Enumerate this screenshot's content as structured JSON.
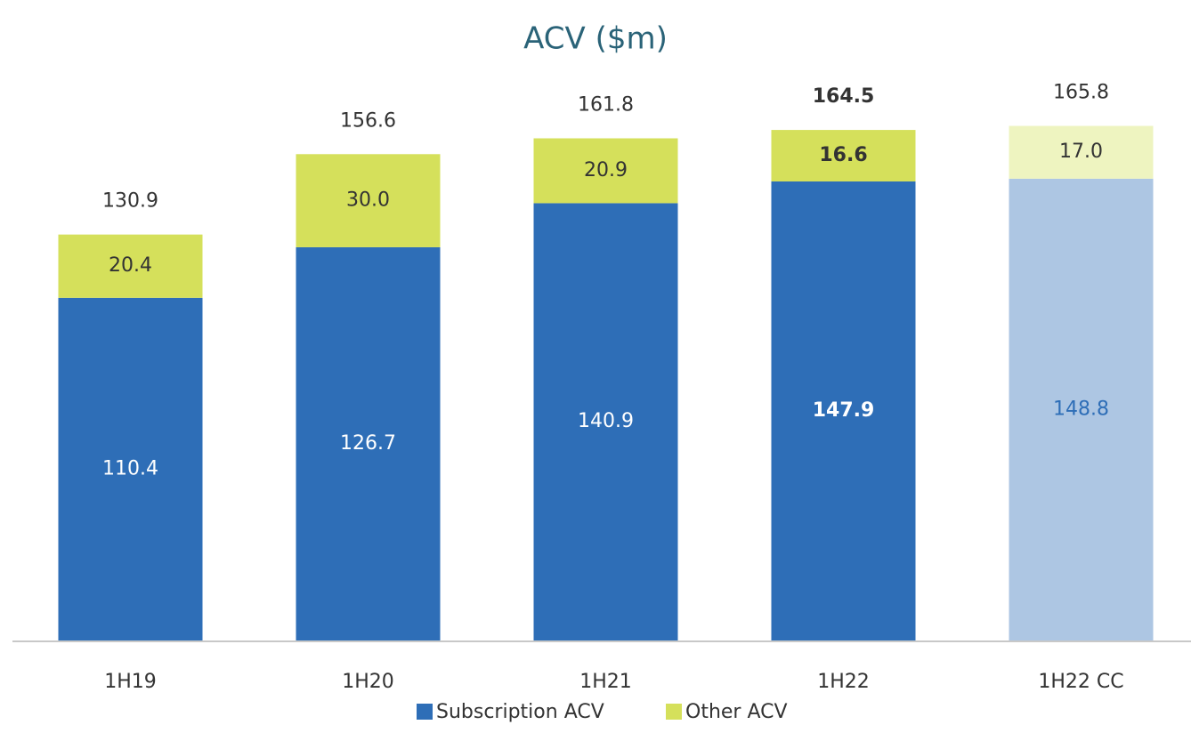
{
  "chart_data": {
    "type": "stacked_bar",
    "title": "ACV ($m)",
    "categories": [
      "1H19",
      "1H20",
      "1H21",
      "1H22",
      "1H22 CC"
    ],
    "series": [
      {
        "name": "Subscription ACV",
        "color": "#2e6eb7",
        "point_colors": [
          "#2e6eb7",
          "#2e6eb7",
          "#2e6eb7",
          "#2e6eb7",
          "#adc6e3"
        ],
        "label_colors": [
          "#ffffff",
          "#ffffff",
          "#ffffff",
          "#ffffff",
          "#2e6eb7"
        ],
        "values": [
          110.4,
          126.7,
          140.9,
          147.9,
          148.8
        ],
        "value_labels": [
          "110.4",
          "126.7",
          "140.9",
          "147.9",
          "148.8"
        ]
      },
      {
        "name": "Other ACV",
        "color": "#d5e05b",
        "point_colors": [
          "#d5e05b",
          "#d5e05b",
          "#d5e05b",
          "#d5e05b",
          "#eef4c0"
        ],
        "label_colors": [
          "#333333",
          "#333333",
          "#333333",
          "#333333",
          "#333333"
        ],
        "values": [
          20.4,
          30.0,
          20.9,
          16.6,
          17.0
        ],
        "value_labels": [
          "20.4",
          "30.0",
          "20.9",
          "16.6",
          "17.0"
        ]
      }
    ],
    "totals": [
      130.9,
      156.6,
      161.8,
      164.5,
      165.8
    ],
    "bold": [
      false,
      false,
      false,
      true,
      false
    ],
    "ylim": [
      0,
      180
    ]
  }
}
